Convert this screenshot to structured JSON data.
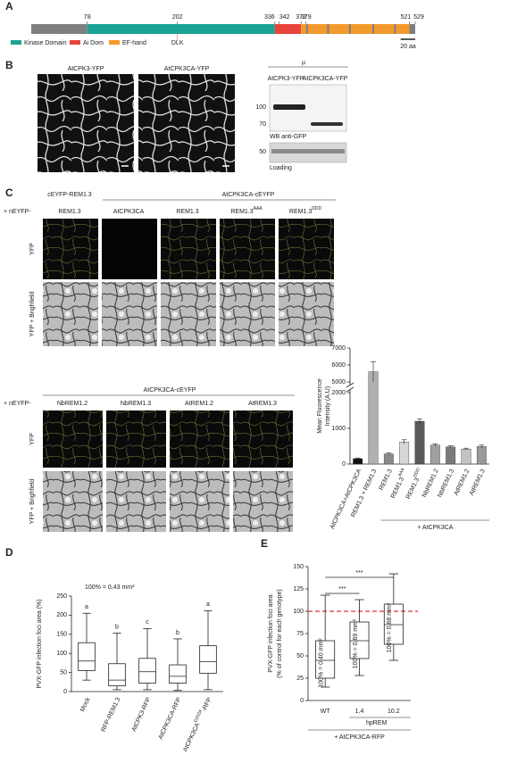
{
  "figure": {
    "panel_labels": [
      "A",
      "B",
      "C",
      "D",
      "E"
    ],
    "domain_map": {
      "length": 529,
      "positions": [
        78,
        202,
        336,
        342,
        372,
        379,
        521,
        529
      ],
      "legend": [
        "Kinase Domain",
        "Ai Dom",
        "EF-hand"
      ],
      "legend_colors": [
        "#1aa394",
        "#e8443a",
        "#f39a2c"
      ],
      "dlk": "DLK",
      "scale": "20 aa"
    },
    "panel_b": {
      "images": [
        "AtCPK3-YFP",
        "AtCPK3CA-YFP"
      ],
      "mu": "µ",
      "lanes": [
        "AtCPK3-YFP",
        "AtCPK3CA-YFP"
      ],
      "markers": [
        100,
        70
      ],
      "loading_marker": 50,
      "wb_label": "WB anti-GFP",
      "loading_label": "Loading"
    },
    "panel_c": {
      "header1": "cEYFP-REM1.3",
      "header2": "AtCPK3CA-cEYFP",
      "prefix": "+ nEYFP-",
      "columns1": [
        "REM1.3",
        "AtCPK3CA",
        "REM1.3",
        {
          "text": "REM1.3",
          "sup": "AAA"
        },
        {
          "text": "REM1.3",
          "sup": "DDD"
        }
      ],
      "rows": [
        "YFP",
        "YFP + Brighfield"
      ],
      "header3": "AtCPK3CA-cEYFP",
      "columns2": [
        "NbREM1.2",
        "NbREM1.3",
        "AtREM1.2",
        "AtREM1.3"
      ]
    }
  },
  "chart_data": [
    {
      "type": "bar",
      "ylabel": [
        "Mean Fluorescence",
        "Intensity (A.U)"
      ],
      "categories": [
        "AtCPK3CA+AtCPK3CA",
        "REM1.3 + REM1.3",
        "REM1.3",
        {
          "text": "REM1.3",
          "sup": "AAA"
        },
        {
          "text": "REM1.3",
          "sup": "DDD"
        },
        "NbREM1.2",
        "NbREM1.3",
        "AtREM1.2",
        "AtREM1.3"
      ],
      "values": [
        150,
        5600,
        280,
        620,
        1200,
        530,
        480,
        420,
        490
      ],
      "errors": [
        20,
        600,
        30,
        60,
        70,
        40,
        30,
        25,
        40
      ],
      "colors": [
        "#111111",
        "#b0b0b0",
        "#8a8a8a",
        "#d8d8d8",
        "#5a5a5a",
        "#a0a0a0",
        "#7a7a7a",
        "#c4c4c4",
        "#9a9a9a"
      ],
      "ylim": [
        0,
        7000
      ],
      "yticks": [
        0,
        1000,
        2000,
        5000,
        6000,
        7000
      ],
      "axis_break": [
        2000,
        5000
      ],
      "group_label": "+ AtCPK3CA"
    },
    {
      "type": "box",
      "subtitle": "100% = 0,43 mm²",
      "ylabel": [
        "PVX-GFP infection foci area (%)"
      ],
      "categories": [
        "Mock",
        "RFP-REM1.3",
        "AtCPK3-RFP",
        "AtCPK3CA-RFP",
        {
          "text": "AtCPK3CA",
          "sup": "D202A",
          "tail": "-RFP"
        }
      ],
      "values": [
        [
          30,
          55,
          80,
          128,
          205
        ],
        [
          5,
          15,
          30,
          73,
          153
        ],
        [
          5,
          22,
          52,
          87,
          165
        ],
        [
          3,
          22,
          40,
          70,
          138
        ],
        [
          5,
          48,
          78,
          120,
          212
        ]
      ],
      "letters": [
        "a",
        "b",
        "c",
        "b",
        "a"
      ],
      "ylim": [
        0,
        250
      ],
      "yticks": [
        0,
        50,
        100,
        150,
        200,
        250
      ]
    },
    {
      "type": "box",
      "ylabel": [
        "PVX-GFP infection foci area",
        "(% of control for each genotype)"
      ],
      "categories": [
        "WT",
        "1.4",
        "10.2"
      ],
      "values": [
        [
          15,
          25,
          45,
          67,
          118
        ],
        [
          28,
          47,
          67,
          88,
          113
        ],
        [
          45,
          63,
          85,
          108,
          142
        ]
      ],
      "box_labels": [
        "100% = 0,40 mm²",
        "100% = 0,69 mm²",
        "100% = 0,68 mm²"
      ],
      "reference": 100,
      "reference_color": "#e03030",
      "significance": [
        "***",
        "***"
      ],
      "group_label": "hpREM",
      "footer": "+ AtCPK3CA-RFP",
      "ylim": [
        0,
        150
      ],
      "yticks": [
        0,
        25,
        50,
        75,
        100,
        125,
        150
      ]
    }
  ]
}
